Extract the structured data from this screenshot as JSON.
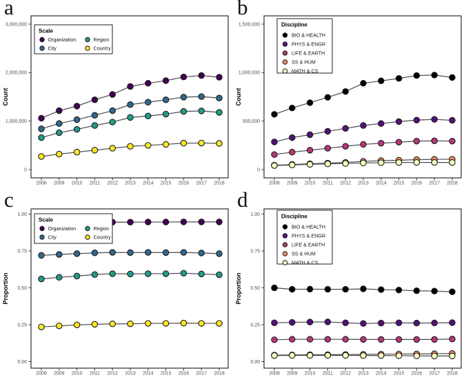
{
  "figure": {
    "background": "#ffffff",
    "panel_letters": [
      "a",
      "b",
      "c",
      "d"
    ]
  },
  "chart_data": [
    {
      "type": "line",
      "letter": "a",
      "legend_title": "Scale",
      "legend_position": "top-left",
      "ylabel": "Count",
      "xlabel": "",
      "ylim": [
        0,
        3000000
      ],
      "grid": false,
      "yticks": [
        {
          "label": "0",
          "value": 0
        },
        {
          "label": "1,000,000",
          "value": 1000000
        },
        {
          "label": "2,000,000",
          "value": 2000000
        },
        {
          "label": "3,000,000",
          "value": 3000000
        }
      ],
      "x_labels": [
        "2008",
        "2009",
        "2010",
        "2011",
        "2012",
        "2013",
        "2014",
        "2015",
        "2016",
        "2017",
        "2018"
      ],
      "line_color": "#4a4a4a",
      "marker_outline": "#1a1a1a",
      "series": [
        {
          "name": "Organization",
          "color": "#440154",
          "values": [
            1060000,
            1215000,
            1310000,
            1440000,
            1550000,
            1715000,
            1780000,
            1835000,
            1910000,
            1940000,
            1905000
          ]
        },
        {
          "name": "City",
          "color": "#31688e",
          "values": [
            840000,
            950000,
            1030000,
            1120000,
            1215000,
            1340000,
            1390000,
            1440000,
            1495000,
            1505000,
            1475000
          ]
        },
        {
          "name": "Region",
          "color": "#1f9e89",
          "values": [
            660000,
            760000,
            830000,
            910000,
            980000,
            1075000,
            1105000,
            1145000,
            1200000,
            1210000,
            1180000
          ]
        },
        {
          "name": "Country",
          "color": "#fde725",
          "values": [
            270000,
            320000,
            360000,
            400000,
            440000,
            480000,
            500000,
            520000,
            545000,
            548000,
            540000
          ]
        }
      ]
    },
    {
      "type": "line",
      "letter": "b",
      "legend_title": "Discipline",
      "legend_position": "top-left",
      "ylabel": "Count",
      "xlabel": "",
      "ylim": [
        0,
        1500000
      ],
      "grid": false,
      "yticks": [
        {
          "label": "0",
          "value": 0
        },
        {
          "label": "500,000",
          "value": 500000
        },
        {
          "label": "1,000,000",
          "value": 1000000
        },
        {
          "label": "1,500,000",
          "value": 1500000
        }
      ],
      "x_labels": [
        "2008",
        "2009",
        "2010",
        "2011",
        "2012",
        "2013",
        "2014",
        "2015",
        "2016",
        "2017",
        "2018"
      ],
      "line_color": "#4a4a4a",
      "marker_outline": "#1a1a1a",
      "series": [
        {
          "name": "BIO & HEALTH",
          "color": "#000004",
          "values": [
            570000,
            635000,
            690000,
            745000,
            805000,
            890000,
            915000,
            940000,
            970000,
            975000,
            950000
          ]
        },
        {
          "name": "PHYS & ENGR",
          "color": "#51127c",
          "values": [
            285000,
            330000,
            360000,
            395000,
            425000,
            455000,
            475000,
            495000,
            510000,
            518000,
            508000
          ]
        },
        {
          "name": "LIFE & EARTH",
          "color": "#b73779",
          "values": [
            155000,
            180000,
            200000,
            220000,
            240000,
            260000,
            272000,
            283000,
            293000,
            297000,
            293000
          ]
        },
        {
          "name": "SS & HUM",
          "color": "#fc8961",
          "values": [
            45000,
            53000,
            60000,
            67000,
            74000,
            85000,
            92000,
            97000,
            102000,
            106000,
            107000
          ]
        },
        {
          "name": "MATH & CS",
          "color": "#fcfdbf",
          "values": [
            42000,
            48000,
            54000,
            59000,
            63000,
            68000,
            71000,
            73000,
            74000,
            74000,
            73000
          ]
        }
      ]
    },
    {
      "type": "line",
      "letter": "c",
      "legend_title": "Scale",
      "legend_position": "top-left",
      "ylabel": "Proportion",
      "xlabel": "",
      "ylim": [
        0,
        1
      ],
      "grid": false,
      "yticks": [
        {
          "label": "0.00",
          "value": 0
        },
        {
          "label": "0.25",
          "value": 0.25
        },
        {
          "label": "0.50",
          "value": 0.5
        },
        {
          "label": "0.75",
          "value": 0.75
        },
        {
          "label": "1.00",
          "value": 1
        }
      ],
      "x_labels": [
        "2008",
        "2009",
        "2010",
        "2011",
        "2012",
        "2013",
        "2014",
        "2015",
        "2016",
        "2017",
        "2018"
      ],
      "line_color": "#4a4a4a",
      "marker_outline": "#1a1a1a",
      "series": [
        {
          "name": "Organization",
          "color": "#440154",
          "values": [
            0.94,
            0.941,
            0.942,
            0.944,
            0.945,
            0.945,
            0.946,
            0.946,
            0.947,
            0.947,
            0.947
          ]
        },
        {
          "name": "City",
          "color": "#31688e",
          "values": [
            0.72,
            0.726,
            0.732,
            0.737,
            0.74,
            0.739,
            0.74,
            0.739,
            0.74,
            0.736,
            0.732
          ]
        },
        {
          "name": "Region",
          "color": "#1f9e89",
          "values": [
            0.56,
            0.571,
            0.58,
            0.59,
            0.596,
            0.594,
            0.596,
            0.596,
            0.599,
            0.594,
            0.589
          ]
        },
        {
          "name": "Country",
          "color": "#fde725",
          "values": [
            0.235,
            0.242,
            0.249,
            0.253,
            0.256,
            0.256,
            0.259,
            0.259,
            0.261,
            0.259,
            0.259
          ]
        }
      ]
    },
    {
      "type": "line",
      "letter": "d",
      "legend_title": "Discipline",
      "legend_position": "top-left",
      "ylabel": "Proportion",
      "xlabel": "",
      "ylim": [
        0,
        1
      ],
      "grid": false,
      "yticks": [
        {
          "label": "0.00",
          "value": 0
        },
        {
          "label": "0.25",
          "value": 0.25
        },
        {
          "label": "0.50",
          "value": 0.5
        },
        {
          "label": "0.75",
          "value": 0.75
        },
        {
          "label": "1.00",
          "value": 1
        }
      ],
      "x_labels": [
        "2008",
        "2009",
        "2010",
        "2011",
        "2012",
        "2013",
        "2014",
        "2015",
        "2016",
        "2017",
        "2018"
      ],
      "line_color": "#4a4a4a",
      "marker_outline": "#1a1a1a",
      "series": [
        {
          "name": "BIO & HEALTH",
          "color": "#000004",
          "values": [
            0.5,
            0.49,
            0.491,
            0.49,
            0.49,
            0.493,
            0.488,
            0.485,
            0.48,
            0.478,
            0.473
          ]
        },
        {
          "name": "PHYS & ENGR",
          "color": "#51127c",
          "values": [
            0.263,
            0.266,
            0.268,
            0.269,
            0.263,
            0.258,
            0.261,
            0.263,
            0.261,
            0.262,
            0.264
          ]
        },
        {
          "name": "LIFE & EARTH",
          "color": "#b73779",
          "values": [
            0.148,
            0.151,
            0.151,
            0.151,
            0.151,
            0.15,
            0.15,
            0.15,
            0.15,
            0.15,
            0.153
          ]
        },
        {
          "name": "SS & HUM",
          "color": "#fc8961",
          "values": [
            0.044,
            0.045,
            0.046,
            0.047,
            0.048,
            0.049,
            0.05,
            0.051,
            0.052,
            0.053,
            0.055
          ]
        },
        {
          "name": "MATH & CS",
          "color": "#fcfdbf",
          "values": [
            0.041,
            0.042,
            0.042,
            0.042,
            0.042,
            0.041,
            0.041,
            0.04,
            0.039,
            0.038,
            0.038
          ]
        }
      ]
    }
  ]
}
